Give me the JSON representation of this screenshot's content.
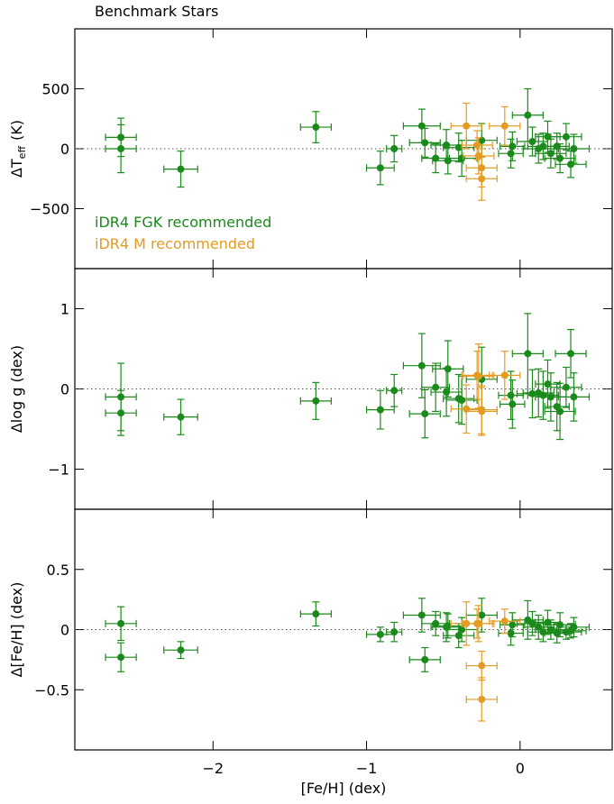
{
  "chart_data": [
    {
      "type": "scatter",
      "title": "Benchmark Stars",
      "ylabel": "ΔT",
      "ylabel_sub": "eff",
      "ylabel_unit": "(K)",
      "xlim": [
        -2.9,
        0.6
      ],
      "ylim": [
        -1000,
        1000
      ],
      "xticks": [
        {
          "value": -2,
          "label": "−2"
        },
        {
          "value": -1,
          "label": "−1"
        },
        0
      ],
      "yticks": [
        {
          "value": -500,
          "label": "−500"
        },
        0,
        500
      ],
      "hline": 0,
      "legend": "lower left",
      "series": [
        {
          "name": "iDR4 FGK recommended",
          "color": "#1a8a1a",
          "x": [
            -2.6,
            -2.6,
            -2.21,
            -1.33,
            -0.91,
            -0.82,
            -0.64,
            -0.62,
            -0.55,
            -0.48,
            -0.47,
            -0.4,
            -0.38,
            -0.25,
            -0.06,
            -0.05,
            0.05,
            0.08,
            0.12,
            0.15,
            0.18,
            0.2,
            0.24,
            0.26,
            0.3,
            0.33,
            0.35
          ],
          "xerr": [
            0.1,
            0.1,
            0.11,
            0.1,
            0.09,
            0.05,
            0.12,
            0.1,
            0.09,
            0.1,
            0.1,
            0.1,
            0.1,
            0.1,
            0.08,
            0.08,
            0.1,
            0.1,
            0.1,
            0.1,
            0.08,
            0.1,
            0.08,
            0.1,
            0.1,
            0.1,
            0.1
          ],
          "values": [
            95,
            0,
            -170,
            180,
            -160,
            0,
            190,
            50,
            -80,
            30,
            -100,
            10,
            -80,
            70,
            -40,
            20,
            280,
            60,
            0,
            20,
            100,
            -40,
            20,
            -80,
            100,
            -130,
            0
          ],
          "yerr": [
            160,
            200,
            150,
            130,
            140,
            110,
            140,
            120,
            120,
            130,
            110,
            120,
            150,
            140,
            120,
            120,
            220,
            120,
            120,
            110,
            130,
            120,
            110,
            120,
            110,
            110,
            120
          ]
        },
        {
          "name": "iDR4 M recommended",
          "color": "#e39b22",
          "x": [
            -0.35,
            -0.1,
            -0.27,
            -0.25,
            -0.25,
            -0.28
          ],
          "xerr": [
            0.1,
            0.1,
            0.1,
            0.1,
            0.1,
            0.1
          ],
          "values": [
            190,
            190,
            -60,
            -160,
            -250,
            30
          ],
          "yerr": [
            190,
            160,
            150,
            160,
            180,
            120
          ]
        }
      ]
    },
    {
      "type": "scatter",
      "ylabel": "Δlog g (dex)",
      "xlim": [
        -2.9,
        0.6
      ],
      "ylim": [
        -1.5,
        1.5
      ],
      "xticks": [
        -2,
        -1,
        0
      ],
      "yticks": [
        {
          "value": -1,
          "label": "−1"
        },
        0,
        1
      ],
      "hline": 0,
      "series": [
        {
          "color": "#1a8a1a",
          "x": [
            -2.6,
            -2.6,
            -2.21,
            -1.33,
            -0.91,
            -0.82,
            -0.64,
            -0.62,
            -0.55,
            -0.48,
            -0.47,
            -0.4,
            -0.38,
            -0.25,
            -0.06,
            -0.05,
            0.05,
            0.08,
            0.12,
            0.15,
            0.18,
            0.2,
            0.24,
            0.26,
            0.3,
            0.33,
            0.35
          ],
          "xerr": [
            0.1,
            0.1,
            0.11,
            0.1,
            0.09,
            0.05,
            0.12,
            0.1,
            0.09,
            0.1,
            0.1,
            0.1,
            0.1,
            0.1,
            0.08,
            0.08,
            0.1,
            0.1,
            0.1,
            0.1,
            0.08,
            0.1,
            0.08,
            0.1,
            0.1,
            0.1,
            0.1
          ],
          "values": [
            -0.1,
            -0.3,
            -0.35,
            -0.15,
            -0.26,
            -0.02,
            0.29,
            -0.31,
            0.02,
            -0.04,
            0.25,
            -0.12,
            -0.14,
            0.12,
            -0.08,
            -0.19,
            0.44,
            -0.06,
            -0.05,
            -0.08,
            0.06,
            -0.1,
            -0.22,
            -0.28,
            0.02,
            0.44,
            -0.1
          ],
          "yerr": [
            0.42,
            0.28,
            0.22,
            0.23,
            0.24,
            0.2,
            0.4,
            0.3,
            0.3,
            0.3,
            0.35,
            0.3,
            0.3,
            0.4,
            0.3,
            0.3,
            0.5,
            0.3,
            0.3,
            0.3,
            0.3,
            0.3,
            0.3,
            0.35,
            0.25,
            0.3,
            0.3
          ]
        },
        {
          "color": "#e39b22",
          "x": [
            -0.35,
            -0.1,
            -0.27,
            -0.25,
            -0.25,
            -0.28
          ],
          "xerr": [
            0.1,
            0.1,
            0.1,
            0.1,
            0.1,
            0.1
          ],
          "values": [
            -0.25,
            0.17,
            0.16,
            -0.26,
            -0.28,
            0.17
          ],
          "yerr": [
            0.3,
            0.3,
            0.4,
            0.3,
            0.3,
            0.3
          ]
        }
      ]
    },
    {
      "type": "scatter",
      "ylabel": "Δ[Fe/H] (dex)",
      "xlabel": "[Fe/H] (dex)",
      "xlim": [
        -2.9,
        0.6
      ],
      "ylim": [
        -1,
        1
      ],
      "xticks": [
        {
          "value": -2,
          "label": "−2"
        },
        {
          "value": -1,
          "label": "−1"
        },
        0
      ],
      "yticks": [
        {
          "value": -0.5,
          "label": "−0.5"
        },
        0,
        0.5
      ],
      "hline": 0,
      "series": [
        {
          "color": "#1a8a1a",
          "x": [
            -2.6,
            -2.6,
            -2.21,
            -1.33,
            -0.91,
            -0.82,
            -0.64,
            -0.62,
            -0.55,
            -0.48,
            -0.47,
            -0.4,
            -0.38,
            -0.25,
            -0.06,
            -0.05,
            0.05,
            0.08,
            0.12,
            0.15,
            0.18,
            0.2,
            0.24,
            0.26,
            0.3,
            0.33,
            0.35
          ],
          "xerr": [
            0.1,
            0.1,
            0.11,
            0.1,
            0.09,
            0.05,
            0.12,
            0.1,
            0.09,
            0.1,
            0.1,
            0.1,
            0.1,
            0.1,
            0.08,
            0.08,
            0.1,
            0.1,
            0.1,
            0.1,
            0.08,
            0.1,
            0.08,
            0.1,
            0.1,
            0.1,
            0.1
          ],
          "values": [
            0.05,
            -0.23,
            -0.17,
            0.13,
            -0.04,
            -0.02,
            0.12,
            -0.25,
            0.05,
            0.02,
            0.03,
            -0.05,
            0.0,
            0.12,
            -0.03,
            0.04,
            0.08,
            0.05,
            0.02,
            -0.02,
            0.06,
            0.0,
            -0.03,
            0.04,
            -0.02,
            -0.01,
            0.02
          ],
          "yerr": [
            0.14,
            0.12,
            0.07,
            0.1,
            0.06,
            0.08,
            0.14,
            0.1,
            0.1,
            0.12,
            0.1,
            0.1,
            0.1,
            0.14,
            0.1,
            0.1,
            0.16,
            0.1,
            0.1,
            0.08,
            0.1,
            0.08,
            0.08,
            0.1,
            0.06,
            0.06,
            0.08
          ]
        },
        {
          "color": "#e39b22",
          "x": [
            -0.35,
            -0.1,
            -0.27,
            -0.25,
            -0.25,
            -0.28
          ],
          "xerr": [
            0.1,
            0.1,
            0.1,
            0.1,
            0.1,
            0.1
          ],
          "values": [
            0.05,
            0.07,
            0.05,
            -0.3,
            -0.58,
            0.05
          ],
          "yerr": [
            0.18,
            0.1,
            0.15,
            0.12,
            0.18,
            0.12
          ]
        }
      ]
    }
  ]
}
